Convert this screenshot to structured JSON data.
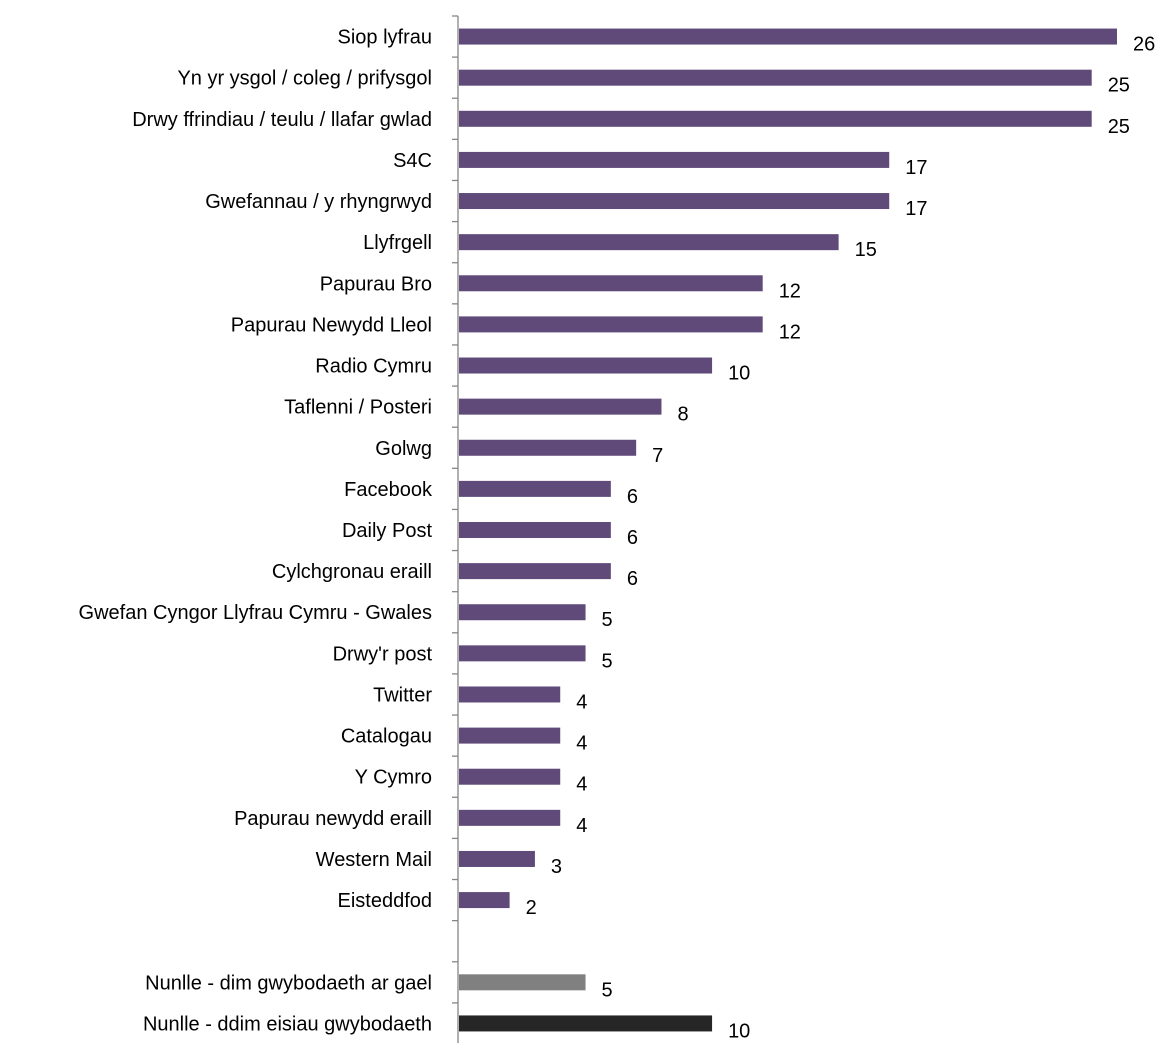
{
  "chart_data": {
    "type": "bar",
    "orientation": "horizontal",
    "title": "",
    "xlabel": "",
    "ylabel": "",
    "xlim": [
      0,
      26
    ],
    "grid": false,
    "legend": "none",
    "colors": {
      "default": "#5f4a7a",
      "grey": "#808080",
      "dark": "#262626",
      "axis": "#868686"
    },
    "categories": [
      "Siop lyfrau",
      "Yn yr ysgol / coleg / prifysgol",
      "Drwy ffrindiau / teulu / llafar gwlad",
      "S4C",
      "Gwefannau / y rhyngrwyd",
      "Llyfrgell",
      "Papurau Bro",
      "Papurau Newydd Lleol",
      "Radio Cymru",
      "Taflenni / Posteri",
      "Golwg",
      "Facebook",
      "Daily Post",
      "Cylchgronau eraill",
      "Gwefan Cyngor Llyfrau Cymru - Gwales",
      "Drwy'r post",
      "Twitter",
      "Catalogau",
      "Y Cymro",
      "Papurau newydd eraill",
      "Western Mail",
      "Eisteddfod",
      "",
      "Nunlle - dim gwybodaeth ar gael",
      "Nunlle - ddim eisiau gwybodaeth"
    ],
    "values": [
      26,
      25,
      25,
      17,
      17,
      15,
      12,
      12,
      10,
      8,
      7,
      6,
      6,
      6,
      5,
      5,
      4,
      4,
      4,
      4,
      3,
      2,
      null,
      5,
      10
    ],
    "bar_color_keys": [
      "default",
      "default",
      "default",
      "default",
      "default",
      "default",
      "default",
      "default",
      "default",
      "default",
      "default",
      "default",
      "default",
      "default",
      "default",
      "default",
      "default",
      "default",
      "default",
      "default",
      "default",
      "default",
      "none",
      "grey",
      "dark"
    ]
  }
}
